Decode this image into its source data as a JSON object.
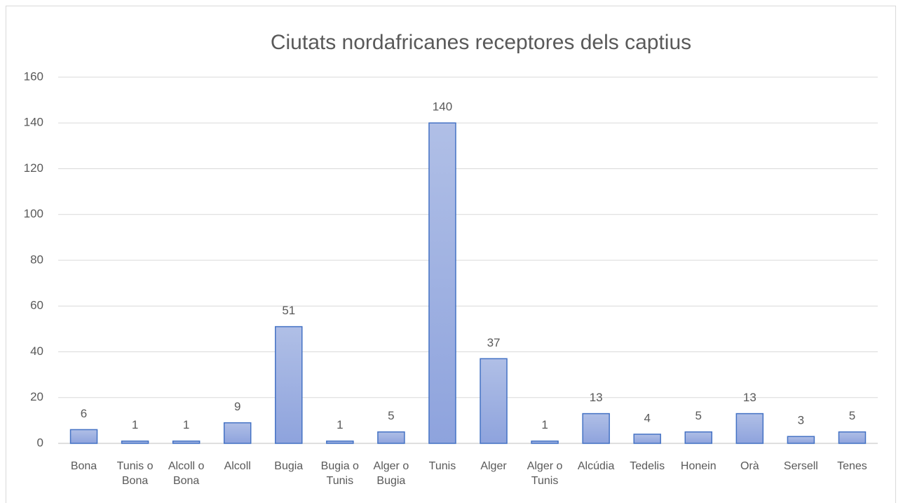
{
  "chart_data": {
    "type": "bar",
    "title": "Ciutats nordafricanes receptores dels captius",
    "categories": [
      "Bona",
      "Tunis o Bona",
      "Alcoll o Bona",
      "Alcoll",
      "Bugia",
      "Bugia o Tunis",
      "Alger o Bugia",
      "Tunis",
      "Alger",
      "Alger o Tunis",
      "Alcúdia",
      "Tedelis",
      "Honein",
      "Orà",
      "Sersell",
      "Tenes"
    ],
    "values": [
      6,
      1,
      1,
      9,
      51,
      1,
      5,
      140,
      37,
      1,
      13,
      4,
      5,
      13,
      3,
      5
    ],
    "color": "#4472c4",
    "ylim": [
      0,
      160
    ],
    "yticks": [
      0,
      20,
      40,
      60,
      80,
      100,
      120,
      140,
      160
    ],
    "grid": true
  }
}
